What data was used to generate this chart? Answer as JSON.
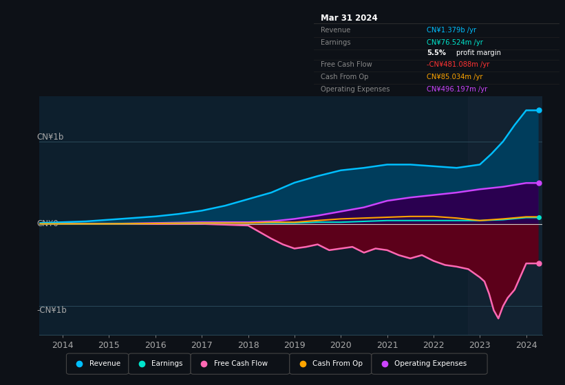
{
  "bg_color": "#0d1117",
  "chart_bg": "#0d1f2d",
  "tooltip": {
    "title": "Mar 31 2024",
    "rows": [
      {
        "label": "Revenue",
        "value": "CN¥1.379b /yr",
        "value_color": "#00bfff"
      },
      {
        "label": "Earnings",
        "value": "CN¥76.524m /yr",
        "value_color": "#00e5cc"
      },
      {
        "label": "",
        "value": "5.5% profit margin",
        "value_color": "#ffffff"
      },
      {
        "label": "Free Cash Flow",
        "value": "-CN¥481.088m /yr",
        "value_color": "#ff3333"
      },
      {
        "label": "Cash From Op",
        "value": "CN¥85.034m /yr",
        "value_color": "#ffa500"
      },
      {
        "label": "Operating Expenses",
        "value": "CN¥496.197m /yr",
        "value_color": "#cc44ff"
      }
    ]
  },
  "ylabel_top": "CN¥1b",
  "ylabel_zero": "CN¥0",
  "ylabel_bottom": "-CN¥1b",
  "x_labels": [
    "2014",
    "2015",
    "2016",
    "2017",
    "2018",
    "2019",
    "2020",
    "2021",
    "2022",
    "2023",
    "2024"
  ],
  "x_ticks": [
    2014,
    2015,
    2016,
    2017,
    2018,
    2019,
    2020,
    2021,
    2022,
    2023,
    2024
  ],
  "legend": [
    {
      "label": "Revenue",
      "color": "#00bfff"
    },
    {
      "label": "Earnings",
      "color": "#00e5cc"
    },
    {
      "label": "Free Cash Flow",
      "color": "#ff69b4"
    },
    {
      "label": "Cash From Op",
      "color": "#ffa500"
    },
    {
      "label": "Operating Expenses",
      "color": "#cc44ff"
    }
  ],
  "xlim": [
    2013.5,
    2024.35
  ],
  "ylim": [
    -1.35,
    1.55
  ],
  "series": {
    "revenue": {
      "color": "#00bfff",
      "fill_color": "#003d5c",
      "x": [
        2013.5,
        2014,
        2014.5,
        2015,
        2015.5,
        2016,
        2016.5,
        2017,
        2017.5,
        2018,
        2018.5,
        2019,
        2019.5,
        2020,
        2020.5,
        2021,
        2021.5,
        2022,
        2022.5,
        2023,
        2023.25,
        2023.5,
        2023.75,
        2024.0,
        2024.25
      ],
      "y": [
        0.01,
        0.02,
        0.03,
        0.05,
        0.07,
        0.09,
        0.12,
        0.16,
        0.22,
        0.3,
        0.38,
        0.5,
        0.58,
        0.65,
        0.68,
        0.72,
        0.72,
        0.7,
        0.68,
        0.72,
        0.85,
        1.0,
        1.2,
        1.379,
        1.379
      ]
    },
    "earnings": {
      "color": "#00e5cc",
      "x": [
        2013.5,
        2014,
        2015,
        2016,
        2017,
        2018,
        2018.5,
        2019,
        2019.5,
        2020,
        2020.5,
        2021,
        2021.5,
        2022,
        2022.5,
        2023,
        2023.5,
        2024.0,
        2024.25
      ],
      "y": [
        0.0,
        0.0,
        0.0,
        0.005,
        0.01,
        0.01,
        0.01,
        0.01,
        0.02,
        0.02,
        0.03,
        0.04,
        0.04,
        0.04,
        0.04,
        0.04,
        0.05,
        0.076,
        0.076
      ]
    },
    "free_cash_flow": {
      "color": "#ff69b4",
      "fill_color": "#5c001a",
      "x": [
        2013.5,
        2014,
        2015,
        2016,
        2017,
        2017.5,
        2018,
        2018.25,
        2018.5,
        2018.75,
        2019,
        2019.25,
        2019.5,
        2019.75,
        2020,
        2020.25,
        2020.5,
        2020.75,
        2021,
        2021.25,
        2021.5,
        2021.75,
        2022,
        2022.25,
        2022.5,
        2022.75,
        2023,
        2023.1,
        2023.2,
        2023.3,
        2023.4,
        2023.5,
        2023.6,
        2023.75,
        2024.0,
        2024.25
      ],
      "y": [
        0.0,
        0.0,
        0.0,
        0.0,
        0.0,
        -0.01,
        -0.02,
        -0.1,
        -0.18,
        -0.25,
        -0.3,
        -0.28,
        -0.25,
        -0.32,
        -0.3,
        -0.28,
        -0.35,
        -0.3,
        -0.32,
        -0.38,
        -0.42,
        -0.38,
        -0.45,
        -0.5,
        -0.52,
        -0.55,
        -0.65,
        -0.7,
        -0.85,
        -1.05,
        -1.15,
        -1.0,
        -0.9,
        -0.8,
        -0.481,
        -0.481
      ]
    },
    "cash_from_op": {
      "color": "#ffa500",
      "x": [
        2013.5,
        2014,
        2015,
        2016,
        2017,
        2017.5,
        2018,
        2018.5,
        2019,
        2019.5,
        2020,
        2020.5,
        2021,
        2021.5,
        2022,
        2022.5,
        2023,
        2023.5,
        2024.0,
        2024.25
      ],
      "y": [
        0.0,
        0.0,
        0.0,
        0.005,
        0.01,
        0.01,
        0.01,
        0.02,
        0.02,
        0.04,
        0.06,
        0.07,
        0.08,
        0.09,
        0.09,
        0.07,
        0.04,
        0.06,
        0.085,
        0.085
      ]
    },
    "operating_expenses": {
      "color": "#cc44ff",
      "fill_color": "#2a0050",
      "x": [
        2013.5,
        2014,
        2015,
        2016,
        2017,
        2018,
        2018.5,
        2019,
        2019.5,
        2020,
        2020.5,
        2021,
        2021.5,
        2022,
        2022.5,
        2023,
        2023.5,
        2024.0,
        2024.25
      ],
      "y": [
        0.0,
        0.0,
        0.0,
        0.01,
        0.02,
        0.02,
        0.03,
        0.06,
        0.1,
        0.15,
        0.2,
        0.28,
        0.32,
        0.35,
        0.38,
        0.42,
        0.45,
        0.496,
        0.496
      ]
    }
  }
}
